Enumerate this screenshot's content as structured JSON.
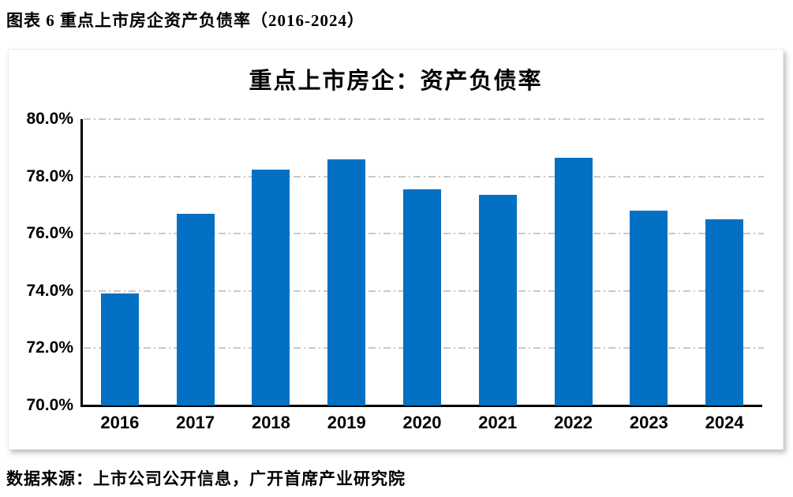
{
  "figure": {
    "header": "图表 6 重点上市房企资产负债率（2016-2024）",
    "footer": "数据来源：上市公司公开信息，广开首席产业研究院"
  },
  "chart_data": {
    "type": "bar",
    "title": "重点上市房企：资产负债率",
    "categories": [
      "2016",
      "2017",
      "2018",
      "2019",
      "2020",
      "2021",
      "2022",
      "2023",
      "2024"
    ],
    "values": [
      73.9,
      76.7,
      78.25,
      78.6,
      77.55,
      77.35,
      78.65,
      76.8,
      76.5
    ],
    "value_unit": "%",
    "xlabel": "",
    "ylabel": "",
    "ylim": [
      70,
      80
    ],
    "yticks": [
      {
        "value": 70,
        "label": "70.0%"
      },
      {
        "value": 72,
        "label": "72.0%"
      },
      {
        "value": 74,
        "label": "74.0%"
      },
      {
        "value": 76,
        "label": "76.0%"
      },
      {
        "value": 78,
        "label": "78.0%"
      },
      {
        "value": 80,
        "label": "80.0%"
      }
    ],
    "grid": "horizontal-dash-dot",
    "legend": "none",
    "colors": {
      "bar": "#0271C3",
      "axis": "#000000",
      "gridline": "#C9C9C9"
    }
  }
}
